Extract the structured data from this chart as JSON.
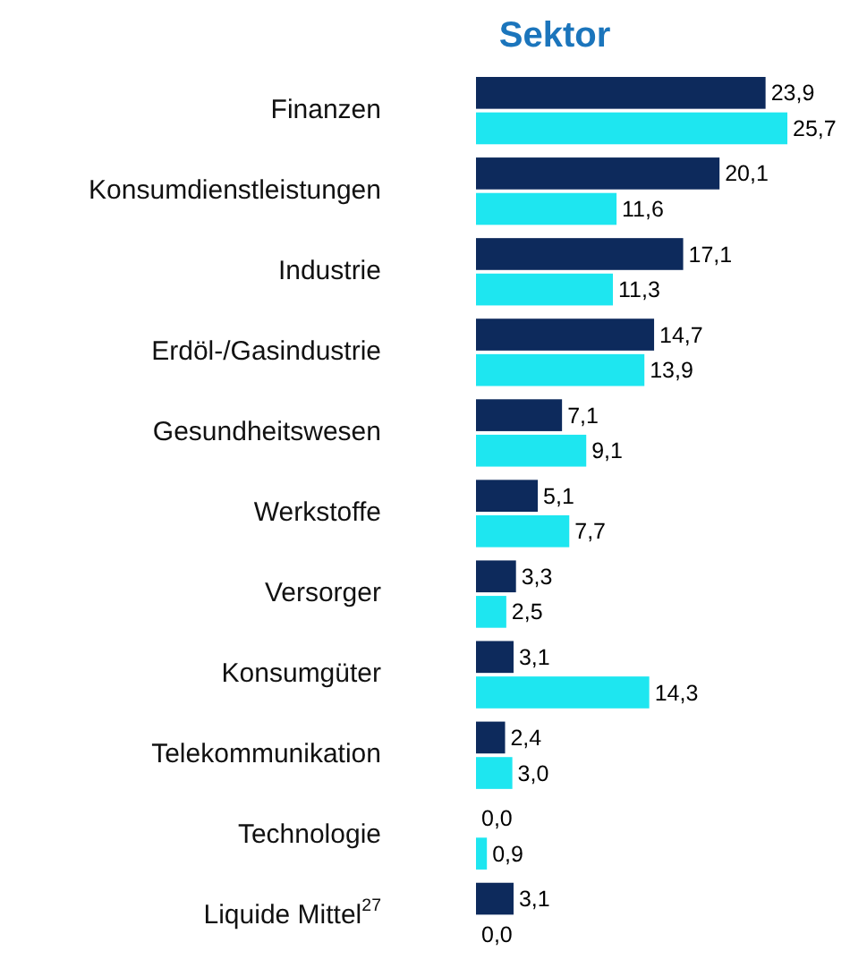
{
  "chart_data": {
    "type": "bar",
    "orientation": "horizontal",
    "title": "Sektor",
    "categories": [
      "Finanzen",
      "Konsumdienstleistungen",
      "Industrie",
      "Erdöl-/Gasindustrie",
      "Gesundheitswesen",
      "Werkstoffe",
      "Versorger",
      "Konsumgüter",
      "Telekommunikation",
      "Technologie",
      "Liquide Mittel$^{27}$"
    ],
    "series": [
      {
        "color": "#0d2a5c",
        "values": [
          23.9,
          20.1,
          17.1,
          14.7,
          7.1,
          5.1,
          3.3,
          3.1,
          2.4,
          0.0,
          3.1
        ],
        "value_labels": [
          "23,9",
          "20,1",
          "17,1",
          "14,7",
          "7,1",
          "5,1",
          "3,3",
          "3,1",
          "2,4",
          "0,0",
          "3,1"
        ]
      },
      {
        "color": "#1ee6f0",
        "values": [
          25.7,
          11.6,
          11.3,
          13.9,
          9.1,
          7.7,
          2.5,
          14.3,
          3.0,
          0.9,
          0.0
        ],
        "value_labels": [
          "25,7",
          "11,6",
          "11,3",
          "13,9",
          "9,1",
          "7,7",
          "2,5",
          "14,3",
          "3,0",
          "0,9",
          "0,0"
        ]
      }
    ]
  }
}
